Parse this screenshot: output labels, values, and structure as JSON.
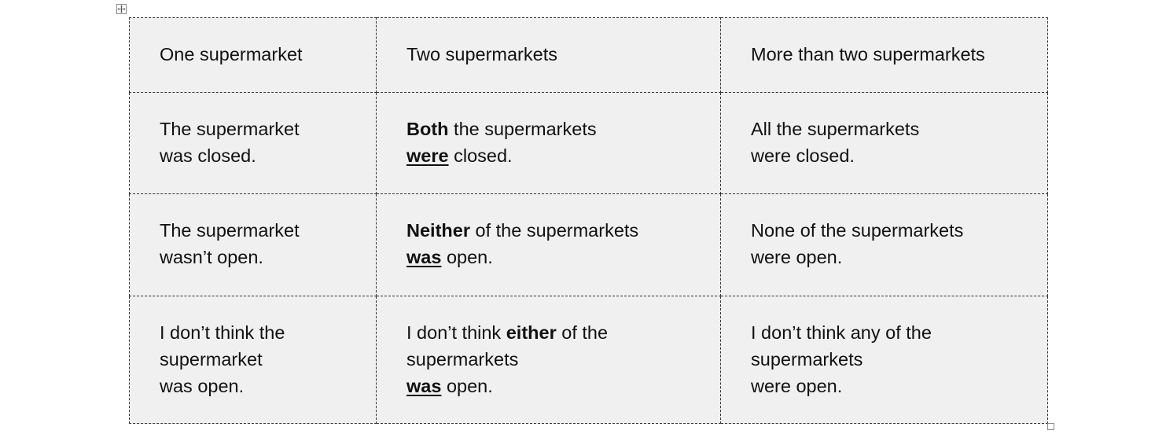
{
  "headers": [
    "One supermarket",
    "Two supermarkets",
    "More than two supermarkets"
  ],
  "rows": [
    {
      "one": {
        "l1": "The supermarket",
        "l2": "was closed."
      },
      "two": {
        "bold": "Both",
        "l1_rest": " the supermarkets",
        "verb": "were",
        "l2_rest": " closed."
      },
      "more": {
        "l1": "All the supermarkets",
        "l2": "were closed."
      }
    },
    {
      "one": {
        "l1": "The supermarket",
        "l2": "wasn’t open."
      },
      "two": {
        "bold": "Neither",
        "l1_rest": " of the supermarkets",
        "verb": "was",
        "l2_rest": " open."
      },
      "more": {
        "l1": "None of the supermarkets",
        "l2": "were open."
      }
    },
    {
      "one": {
        "l1": "I don’t think the",
        "l2": "supermarket",
        "l3": "was open."
      },
      "two": {
        "l1_pre": "I don’t think ",
        "bold": "either",
        "l1_rest": " of the",
        "l2": "supermarkets",
        "verb": "was",
        "l3_rest": " open."
      },
      "more": {
        "l1": "I don’t think any of the",
        "l2": "supermarkets",
        "l3": "were open."
      }
    }
  ]
}
